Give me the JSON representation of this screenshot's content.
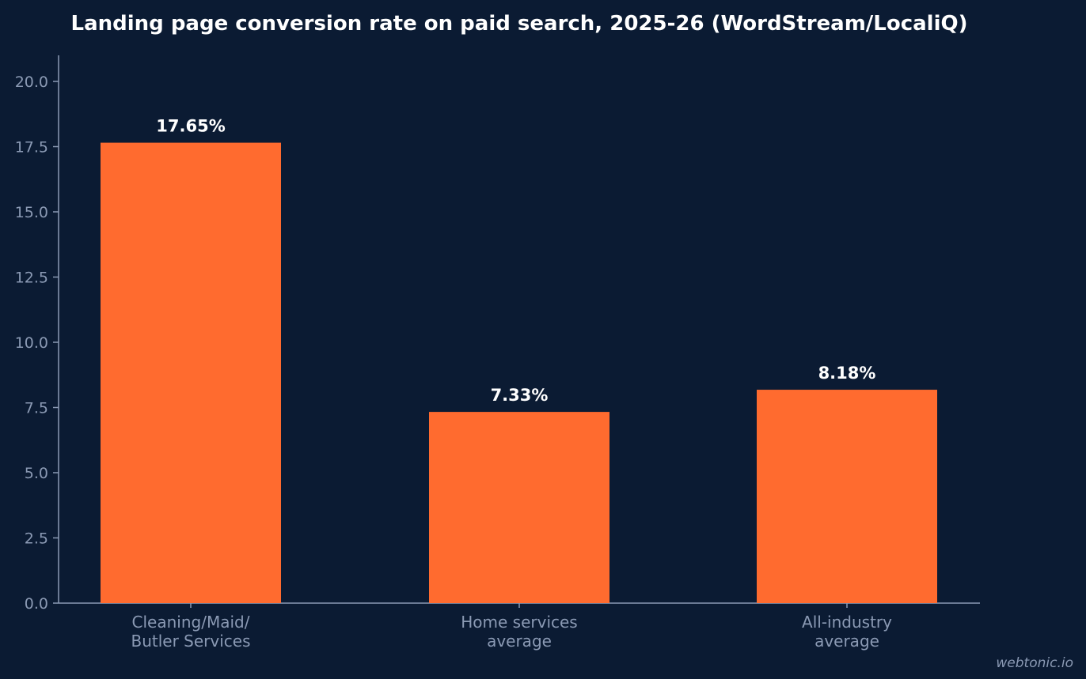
{
  "chart_data": {
    "type": "bar",
    "title": "Landing page conversion rate on paid search, 2025-26 (WordStream/LocaliQ)",
    "xlabel": "",
    "ylabel": "",
    "categories": [
      [
        "Cleaning/Maid/",
        "Butler Services"
      ],
      [
        "Home services",
        "average"
      ],
      [
        "All-industry",
        "average"
      ]
    ],
    "values": [
      17.65,
      7.33,
      8.18
    ],
    "data_labels": [
      "17.65%",
      "7.33%",
      "8.18%"
    ],
    "ylim": [
      0,
      21
    ],
    "yticks": [
      0,
      2.5,
      5,
      7.5,
      10,
      12.5,
      15,
      17.5,
      20
    ],
    "ytick_labels": [
      "0.0",
      "2.5",
      "5.0",
      "7.5",
      "10.0",
      "12.5",
      "15.0",
      "17.5",
      "20.0"
    ],
    "grid": false,
    "legend": "none",
    "bar_color": "#ff6b2f",
    "background_color": "#0b1b33",
    "axis_color": "#8b9ab4"
  },
  "watermark": "webtonic.io"
}
